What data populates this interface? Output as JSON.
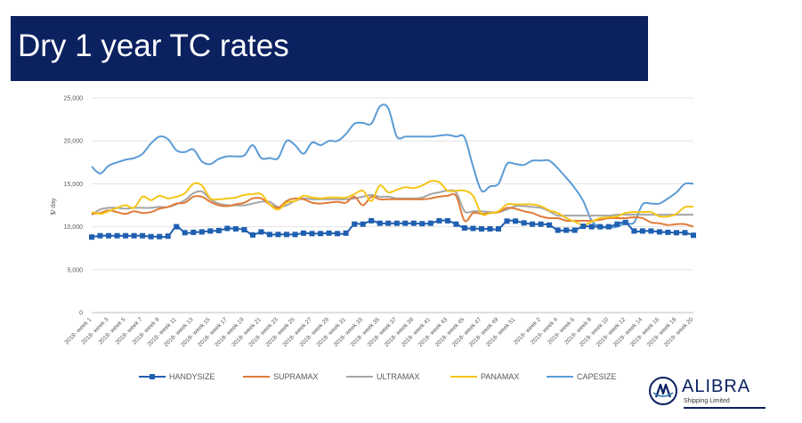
{
  "title": "Dry 1 year TC rates",
  "logo": {
    "name": "ALIBRA",
    "subtitle": "Shipping Limited"
  },
  "chart_data": {
    "type": "line",
    "ylabel": "$/ day",
    "ylim": [
      0,
      25000
    ],
    "yticks": [
      0,
      5000,
      10000,
      15000,
      20000,
      25000
    ],
    "ytick_labels": [
      "0",
      "5,000",
      "10,000",
      "15,000",
      "20,000",
      "25,000"
    ],
    "grid": true,
    "legend": "bottom",
    "x": [
      "2018- week 1",
      "2018- week 2",
      "2018- week 3",
      "2018- week 4",
      "2018- week 5",
      "2018- week 6",
      "2018- week 7",
      "2018- week 8",
      "2018- week 9",
      "2018- week 10",
      "2018- week 11",
      "2018- week 12",
      "2018- week 13",
      "2018- week 14",
      "2018- week 15",
      "2018- week 16",
      "2018- week 17",
      "2018- week 18",
      "2018- week 19",
      "2018- week 20",
      "2018- week 21",
      "2018- week 22",
      "2018- week 23",
      "2018- week 24",
      "2018- week 25",
      "2018- week 26",
      "2018- week 27",
      "2018- week 28",
      "2018- week 29",
      "2018- week 30",
      "2018- week 31",
      "2018- week 32",
      "2018- week 33",
      "2018- week 34",
      "2018- week 35",
      "2018- week 36",
      "2018- week 37",
      "2018- week 38",
      "2018- week 39",
      "2018- week 40",
      "2018- week 41",
      "2018- week 42",
      "2018- week 43",
      "2018- week 44",
      "2018- week 45",
      "2018- week 46",
      "2018- week 47",
      "2018- week 48",
      "2018- week 49",
      "2018- week 50",
      "2018- week 51",
      "2018- week 52",
      "2019- week 1",
      "2019- week 2",
      "2019- week 3",
      "2019- week 4",
      "2019- week 5",
      "2019- week 6",
      "2019- week 7",
      "2019- week 8",
      "2019- week 9",
      "2019- week 10",
      "2019- week 11",
      "2019- week 12",
      "2019- week 13",
      "2019- week 14",
      "2019- week 15",
      "2019- week 16",
      "2019- week 17",
      "2019- week 18",
      "2019- week 19",
      "2019- week 20"
    ],
    "xtick_labels": [
      "2018- week 1",
      "2018- week 3",
      "2018- week 5",
      "2018- week 7",
      "2018- week 9",
      "2018- week 11",
      "2018- week 13",
      "2018- week 15",
      "2018- week 17",
      "2018- week 19",
      "2018- week 21",
      "2018- week 23",
      "2018- week 25",
      "2018- week 27",
      "2018- week 29",
      "2018- week 31",
      "2018- week 33",
      "2018- week 35",
      "2018- week 37",
      "2018- week 39",
      "2018- week 41",
      "2018- week 43",
      "2018- week 45",
      "2018- week 47",
      "2018- week 49",
      "2018- week 51",
      "2019- week 2",
      "2019- week 4",
      "2019- week 6",
      "2019- week 8",
      "2019- week 10",
      "2019- week 12",
      "2019- week 14",
      "2019- week 16",
      "2019- week 18",
      "2019- week 20"
    ],
    "series": [
      {
        "name": "HANDYSIZE",
        "color": "#1f5fb0",
        "marker": "square",
        "values": [
          8800,
          8950,
          8950,
          8950,
          8950,
          8950,
          8950,
          8850,
          8850,
          8900,
          10000,
          9300,
          9350,
          9400,
          9500,
          9550,
          9800,
          9750,
          9650,
          9050,
          9400,
          9100,
          9100,
          9100,
          9100,
          9250,
          9200,
          9200,
          9250,
          9200,
          9250,
          10300,
          10300,
          10700,
          10400,
          10400,
          10400,
          10400,
          10400,
          10350,
          10400,
          10700,
          10700,
          10300,
          9850,
          9800,
          9750,
          9750,
          9750,
          10650,
          10650,
          10450,
          10300,
          10300,
          10200,
          9600,
          9600,
          9600,
          10050,
          10000,
          10000,
          10000,
          10300,
          10500,
          9500,
          9500,
          9500,
          9400,
          9350,
          9300,
          9300,
          9000
        ]
      },
      {
        "name": "SUPRAMAX",
        "color": "#e07b39",
        "marker": "none",
        "values": [
          11500,
          11600,
          11900,
          11700,
          11500,
          11800,
          11600,
          11700,
          12100,
          12300,
          12700,
          12800,
          13500,
          13500,
          12900,
          12500,
          12400,
          12600,
          12800,
          13300,
          13300,
          12600,
          12200,
          13000,
          13300,
          13200,
          12800,
          12700,
          12800,
          12900,
          12800,
          13500,
          12500,
          13500,
          13200,
          13200,
          13200,
          13200,
          13200,
          13200,
          13300,
          13500,
          13600,
          13600,
          10700,
          11600,
          11500,
          11600,
          11700,
          12200,
          12100,
          11800,
          11600,
          11200,
          11000,
          11000,
          10700,
          10700,
          10700,
          10700,
          10800,
          11000,
          11000,
          11000,
          11100,
          11000,
          10500,
          10400,
          10200,
          10300,
          10300,
          10000
        ]
      },
      {
        "name": "ULTRAMAX",
        "color": "#a5a5a5",
        "marker": "none",
        "values": [
          11400,
          12000,
          12200,
          12200,
          12100,
          12200,
          12200,
          12200,
          12300,
          12300,
          12600,
          13100,
          13900,
          14100,
          13200,
          12700,
          12500,
          12500,
          12500,
          12700,
          12900,
          12900,
          12300,
          12500,
          13000,
          13300,
          13200,
          13200,
          13200,
          13200,
          13200,
          13300,
          13500,
          13700,
          13500,
          13500,
          13300,
          13300,
          13300,
          13400,
          13800,
          14000,
          14200,
          14000,
          11800,
          11800,
          11800,
          11700,
          11700,
          12000,
          12400,
          12400,
          12300,
          12200,
          11800,
          11300,
          11300,
          11300,
          11300,
          11300,
          11300,
          11300,
          11400,
          11400,
          11400,
          11400,
          11400,
          11400,
          11400,
          11400,
          11400,
          11400
        ]
      },
      {
        "name": "PANAMAX",
        "color": "#f5c518",
        "marker": "none",
        "values": [
          11700,
          11500,
          11800,
          12200,
          12500,
          12200,
          13500,
          13100,
          13600,
          13300,
          13500,
          13900,
          15000,
          14800,
          13300,
          13200,
          13300,
          13400,
          13700,
          13800,
          13800,
          12600,
          12000,
          12800,
          13000,
          13600,
          13400,
          13300,
          13400,
          13400,
          13400,
          13800,
          14200,
          13000,
          14800,
          14000,
          14300,
          14600,
          14500,
          14800,
          15300,
          15200,
          14200,
          14200,
          14200,
          13600,
          11500,
          11600,
          11800,
          12600,
          12600,
          12600,
          12600,
          12400,
          11900,
          11600,
          11000,
          10600,
          10200,
          10600,
          11000,
          11100,
          11200,
          11600,
          11700,
          11700,
          11700,
          11200,
          11200,
          11500,
          12300,
          12300
        ]
      },
      {
        "name": "CAPESIZE",
        "color": "#5b9bd5",
        "marker": "none",
        "values": [
          17000,
          16200,
          17100,
          17500,
          17800,
          18000,
          18500,
          19700,
          20500,
          20200,
          18900,
          18700,
          19000,
          17600,
          17300,
          17900,
          18200,
          18200,
          18300,
          19500,
          18000,
          18000,
          18000,
          20000,
          19500,
          18500,
          19800,
          19500,
          20000,
          20000,
          20800,
          22000,
          22100,
          22000,
          24000,
          23800,
          20500,
          20500,
          20500,
          20500,
          20500,
          20600,
          20700,
          20500,
          20400,
          17000,
          14200,
          14700,
          15000,
          17300,
          17300,
          17200,
          17700,
          17700,
          17700,
          16800,
          15700,
          14500,
          13000,
          10700,
          10000,
          9900,
          10000,
          10400,
          10500,
          12600,
          12700,
          12700,
          13300,
          14000,
          15000,
          15000
        ]
      }
    ]
  }
}
